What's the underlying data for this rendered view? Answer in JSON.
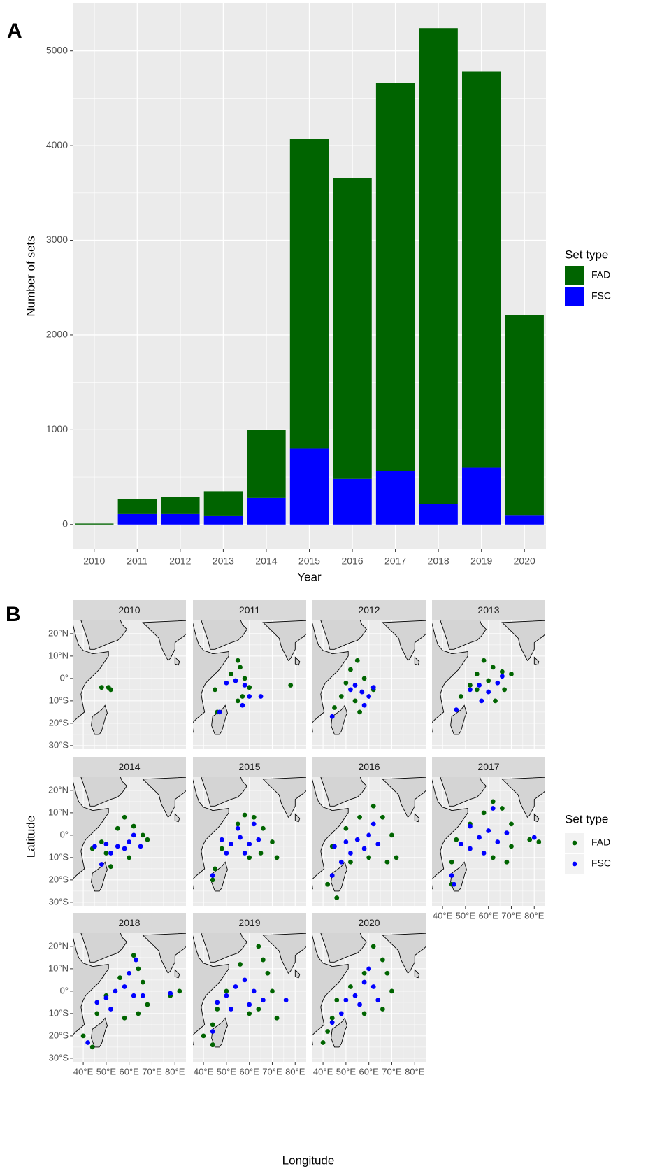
{
  "chart_data": [
    {
      "type": "bar",
      "panel_label": "A",
      "xlabel": "Year",
      "ylabel": "Number of sets",
      "legend_title": "Set type",
      "categories": [
        "2010",
        "2011",
        "2012",
        "2013",
        "2014",
        "2015",
        "2016",
        "2017",
        "2018",
        "2019",
        "2020"
      ],
      "series": [
        {
          "name": "FAD",
          "color": "#006400",
          "values": [
            10,
            160,
            180,
            255,
            720,
            3270,
            3180,
            4100,
            5020,
            4180,
            2110
          ]
        },
        {
          "name": "FSC",
          "color": "#0000ff",
          "values": [
            0,
            110,
            110,
            95,
            280,
            800,
            480,
            560,
            220,
            600,
            100
          ]
        }
      ],
      "ylim": [
        -260,
        5500
      ],
      "yticks": [
        0,
        1000,
        2000,
        3000,
        4000,
        5000
      ],
      "grid": true
    },
    {
      "type": "map",
      "panel_label": "B",
      "xlabel": "Longitude",
      "ylabel": "Latitude",
      "legend_title": "Set type",
      "xlim": [
        35.4,
        84.8
      ],
      "ylim": [
        -31.6,
        25.9
      ],
      "xticks": [
        {
          "value": 40,
          "label": "40°E"
        },
        {
          "value": 50,
          "label": "50°E"
        },
        {
          "value": 60,
          "label": "60°E"
        },
        {
          "value": 70,
          "label": "70°E"
        },
        {
          "value": 80,
          "label": "80°E"
        }
      ],
      "yticks": [
        {
          "value": -30,
          "label": "30°S"
        },
        {
          "value": -20,
          "label": "20°S"
        },
        {
          "value": -10,
          "label": "10°S"
        },
        {
          "value": 0,
          "label": "0°"
        },
        {
          "value": 10,
          "label": "10°N"
        },
        {
          "value": 20,
          "label": "20°N"
        }
      ],
      "grid": true,
      "facets": [
        {
          "title": "2010",
          "series": [
            {
              "name": "FAD",
              "color": "#006400",
              "x": [
                48,
                51,
                52
              ],
              "values": [
                -4,
                -4,
                -5
              ]
            },
            {
              "name": "FSC",
              "color": "#0000ff",
              "x": [],
              "values": []
            }
          ]
        },
        {
          "title": "2011",
          "series": [
            {
              "name": "FAD",
              "color": "#006400",
              "x": [
                55,
                56,
                52,
                58,
                60,
                57,
                45,
                46,
                55,
                78
              ],
              "values": [
                8,
                5,
                2,
                0,
                -4,
                -8,
                -5,
                -15,
                -10,
                -3
              ]
            },
            {
              "name": "FSC",
              "color": "#0000ff",
              "x": [
                50,
                54,
                58,
                60,
                47,
                65,
                57
              ],
              "values": [
                -2,
                -1,
                -3,
                -8,
                -15,
                -8,
                -12
              ]
            }
          ]
        },
        {
          "title": "2012",
          "series": [
            {
              "name": "FAD",
              "color": "#006400",
              "x": [
                55,
                52,
                50,
                48,
                56,
                45,
                58,
                62,
                54
              ],
              "values": [
                8,
                4,
                -2,
                -8,
                -15,
                -13,
                0,
                -5,
                -10
              ]
            },
            {
              "name": "FSC",
              "color": "#0000ff",
              "x": [
                54,
                57,
                60,
                62,
                58,
                44,
                52
              ],
              "values": [
                -3,
                -6,
                -8,
                -4,
                -12,
                -17,
                -5
              ]
            }
          ]
        },
        {
          "title": "2013",
          "series": [
            {
              "name": "FAD",
              "color": "#006400",
              "x": [
                58,
                62,
                66,
                70,
                55,
                52,
                60,
                67,
                48,
                63,
                55
              ],
              "values": [
                8,
                5,
                3,
                2,
                2,
                -3,
                -1,
                -5,
                -8,
                -10,
                -5
              ]
            },
            {
              "name": "FSC",
              "color": "#0000ff",
              "x": [
                52,
                56,
                60,
                64,
                57,
                46,
                66
              ],
              "values": [
                -5,
                -3,
                -6,
                -2,
                -10,
                -14,
                1
              ]
            }
          ]
        },
        {
          "title": "2014",
          "series": [
            {
              "name": "FAD",
              "color": "#006400",
              "x": [
                58,
                62,
                55,
                66,
                48,
                50,
                60,
                68,
                52,
                44
              ],
              "values": [
                8,
                4,
                3,
                0,
                -3,
                -8,
                -10,
                -2,
                -14,
                -6
              ]
            },
            {
              "name": "FSC",
              "color": "#0000ff",
              "x": [
                45,
                50,
                55,
                60,
                65,
                52,
                58,
                48,
                62
              ],
              "values": [
                -5,
                -4,
                -5,
                -3,
                -5,
                -8,
                -6,
                -13,
                0
              ]
            }
          ]
        },
        {
          "title": "2015",
          "series": [
            {
              "name": "FAD",
              "color": "#006400",
              "x": [
                58,
                62,
                66,
                70,
                72,
                48,
                45,
                44,
                60,
                55,
                65
              ],
              "values": [
                9,
                8,
                3,
                -3,
                -10,
                -6,
                -15,
                -20,
                -10,
                5,
                -8
              ]
            },
            {
              "name": "FSC",
              "color": "#0000ff",
              "x": [
                48,
                52,
                56,
                60,
                64,
                50,
                58,
                44,
                62,
                55
              ],
              "values": [
                -2,
                -4,
                -1,
                -4,
                -2,
                -8,
                -8,
                -18,
                5,
                3
              ]
            }
          ]
        },
        {
          "title": "2016",
          "series": [
            {
              "name": "FAD",
              "color": "#006400",
              "x": [
                62,
                66,
                70,
                72,
                68,
                56,
                50,
                44,
                42,
                46,
                60,
                52
              ],
              "values": [
                13,
                8,
                0,
                -10,
                -12,
                8,
                3,
                -5,
                -22,
                -28,
                -10,
                -12
              ]
            },
            {
              "name": "FSC",
              "color": "#0000ff",
              "x": [
                45,
                50,
                55,
                60,
                64,
                52,
                58,
                44,
                48,
                62
              ],
              "values": [
                -5,
                -3,
                -2,
                0,
                -4,
                -8,
                -6,
                -18,
                -12,
                5
              ]
            }
          ]
        },
        {
          "title": "2017",
          "series": [
            {
              "name": "FAD",
              "color": "#006400",
              "x": [
                62,
                66,
                70,
                70,
                68,
                58,
                52,
                46,
                44,
                44,
                78,
                82,
                62
              ],
              "values": [
                15,
                12,
                5,
                -5,
                -12,
                10,
                5,
                -2,
                -12,
                -22,
                -2,
                -3,
                -10
              ]
            },
            {
              "name": "FSC",
              "color": "#0000ff",
              "x": [
                48,
                52,
                56,
                60,
                64,
                68,
                58,
                52,
                44,
                45,
                80,
                62
              ],
              "values": [
                -4,
                -6,
                -1,
                2,
                -3,
                1,
                -8,
                4,
                -18,
                -22,
                -1,
                12
              ]
            }
          ]
        },
        {
          "title": "2018",
          "series": [
            {
              "name": "FAD",
              "color": "#006400",
              "x": [
                62,
                64,
                66,
                68,
                64,
                56,
                50,
                46,
                40,
                44,
                78,
                82,
                58
              ],
              "values": [
                16,
                10,
                4,
                -6,
                -10,
                6,
                -2,
                -10,
                -20,
                -25,
                -2,
                0,
                -12
              ]
            },
            {
              "name": "FSC",
              "color": "#0000ff",
              "x": [
                46,
                50,
                54,
                58,
                62,
                66,
                52,
                60,
                63,
                42,
                78
              ],
              "values": [
                -5,
                -3,
                0,
                2,
                -2,
                -2,
                -8,
                8,
                14,
                -23,
                -1
              ]
            }
          ]
        },
        {
          "title": "2019",
          "series": [
            {
              "name": "FAD",
              "color": "#006400",
              "x": [
                64,
                66,
                68,
                70,
                64,
                56,
                50,
                46,
                44,
                40,
                44,
                72,
                60
              ],
              "values": [
                20,
                14,
                8,
                0,
                -8,
                12,
                0,
                -8,
                -15,
                -20,
                -24,
                -12,
                -10
              ]
            },
            {
              "name": "FSC",
              "color": "#0000ff",
              "x": [
                46,
                50,
                54,
                58,
                62,
                66,
                52,
                60,
                44,
                76
              ],
              "values": [
                -5,
                -2,
                2,
                5,
                0,
                -4,
                -8,
                -6,
                -18,
                -4
              ]
            }
          ]
        },
        {
          "title": "2020",
          "series": [
            {
              "name": "FAD",
              "color": "#006400",
              "x": [
                62,
                66,
                68,
                70,
                66,
                58,
                52,
                46,
                44,
                42,
                40,
                58
              ],
              "values": [
                20,
                14,
                8,
                0,
                -8,
                8,
                2,
                -4,
                -12,
                -18,
                -23,
                -10
              ]
            },
            {
              "name": "FSC",
              "color": "#0000ff",
              "x": [
                50,
                54,
                58,
                60,
                62,
                64,
                48,
                56,
                44
              ],
              "values": [
                -4,
                -2,
                4,
                10,
                2,
                -4,
                -10,
                -6,
                -14
              ]
            }
          ]
        }
      ]
    }
  ]
}
